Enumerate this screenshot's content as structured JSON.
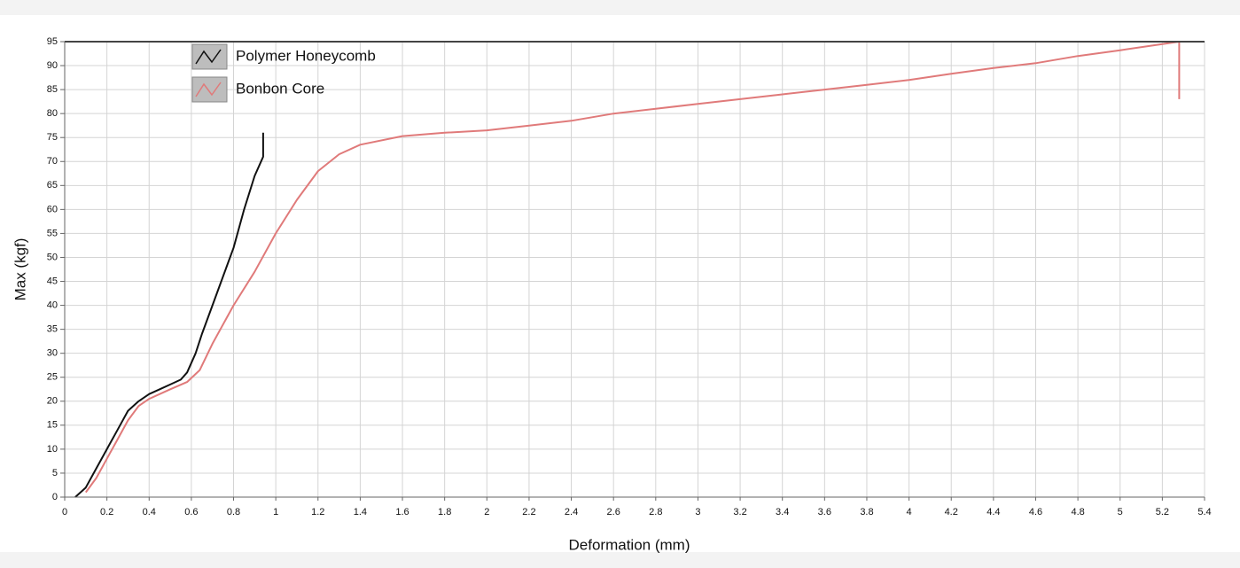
{
  "chart_data": {
    "type": "line",
    "xlabel": "Deformation (mm)",
    "ylabel": "Max (kgf)",
    "xlim": [
      0,
      5.4
    ],
    "ylim": [
      0,
      95
    ],
    "xticks": [
      0,
      0.2,
      0.4,
      0.6,
      0.8,
      1,
      1.2,
      1.4,
      1.6,
      1.8,
      2,
      2.2,
      2.4,
      2.6,
      2.8,
      3,
      3.2,
      3.4,
      3.6,
      3.8,
      4,
      4.2,
      4.4,
      4.6,
      4.8,
      5,
      5.2,
      5.4
    ],
    "yticks": [
      0,
      5,
      10,
      15,
      20,
      25,
      30,
      35,
      40,
      45,
      50,
      55,
      60,
      65,
      70,
      75,
      80,
      85,
      90,
      95
    ],
    "grid": true,
    "legend": "top-left",
    "series": [
      {
        "name": "Polymer Honeycomb",
        "color": "#111111",
        "x": [
          0.05,
          0.1,
          0.15,
          0.2,
          0.25,
          0.3,
          0.35,
          0.4,
          0.45,
          0.5,
          0.55,
          0.58,
          0.62,
          0.65,
          0.7,
          0.75,
          0.8,
          0.85,
          0.9,
          0.93,
          0.94,
          0.94
        ],
        "values": [
          0,
          2,
          6,
          10,
          14,
          18,
          20,
          21.5,
          22.5,
          23.5,
          24.5,
          26,
          30,
          34,
          40,
          46,
          52,
          60,
          67,
          70,
          71,
          76
        ]
      },
      {
        "name": "Bonbon Core",
        "color": "#e07a7a",
        "x": [
          0.1,
          0.15,
          0.2,
          0.25,
          0.3,
          0.35,
          0.4,
          0.45,
          0.5,
          0.58,
          0.64,
          0.7,
          0.8,
          0.9,
          1.0,
          1.1,
          1.2,
          1.3,
          1.4,
          1.6,
          1.8,
          2.0,
          2.2,
          2.4,
          2.6,
          2.8,
          3.0,
          3.2,
          3.4,
          3.6,
          3.8,
          4.0,
          4.2,
          4.4,
          4.6,
          4.8,
          5.0,
          5.2,
          5.28,
          5.28
        ],
        "values": [
          1,
          4,
          8,
          12,
          16,
          19,
          20.5,
          21.5,
          22.5,
          24,
          26.5,
          32,
          40,
          47,
          55,
          62,
          68,
          71.5,
          73.5,
          75.3,
          76,
          76.5,
          77.5,
          78.5,
          80,
          81,
          82,
          83,
          84,
          85,
          86,
          87,
          88.3,
          89.5,
          90.5,
          92,
          93.2,
          94.5,
          95,
          83
        ]
      }
    ]
  }
}
